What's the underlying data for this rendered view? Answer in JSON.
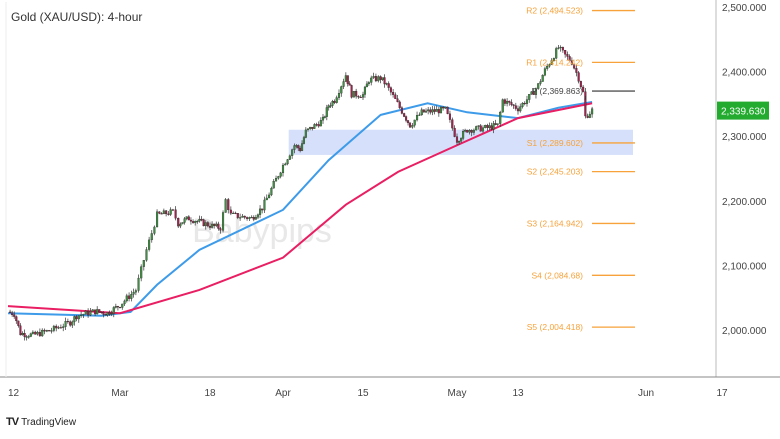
{
  "chart_data": {
    "type": "candlestick",
    "title": "Gold (XAU/USD): 4-hour",
    "watermark": "Babypips",
    "ylim": [
      1950,
      2520
    ],
    "y_ticks": [
      "2,500.000",
      "2,400.000",
      "2,300.000",
      "2,200.000",
      "2,100.000",
      "2,000.000"
    ],
    "y_tick_values": [
      2500,
      2400,
      2300,
      2200,
      2100,
      2000
    ],
    "x_ticks": [
      {
        "label": "12",
        "date": "2024-02-12"
      },
      {
        "label": "Mar",
        "date": "2024-03-01"
      },
      {
        "label": "18",
        "date": "2024-03-18"
      },
      {
        "label": "Apr",
        "date": "2024-04-01"
      },
      {
        "label": "15",
        "date": "2024-04-15"
      },
      {
        "label": "May",
        "date": "2024-05-01"
      },
      {
        "label": "13",
        "date": "2024-05-13"
      },
      {
        "label": "Jun",
        "date": "2024-06-01"
      },
      {
        "label": "17",
        "date": "2024-06-17"
      }
    ],
    "current_price": {
      "label": "2,339.630",
      "value": 2339.63,
      "color": "#22ab2f"
    },
    "price_path": [
      [
        "2024-02-12",
        2028
      ],
      [
        "2024-02-13",
        2025
      ],
      [
        "2024-02-14",
        1995
      ],
      [
        "2024-02-16",
        1992
      ],
      [
        "2024-02-19",
        2000
      ],
      [
        "2024-02-22",
        2012
      ],
      [
        "2024-02-23",
        2022
      ],
      [
        "2024-02-26",
        2029
      ],
      [
        "2024-02-28",
        2026
      ],
      [
        "2024-03-01",
        2039
      ],
      [
        "2024-03-04",
        2062
      ],
      [
        "2024-03-05",
        2093
      ],
      [
        "2024-03-06",
        2124
      ],
      [
        "2024-03-07",
        2150
      ],
      [
        "2024-03-08",
        2178
      ],
      [
        "2024-03-11",
        2183
      ],
      [
        "2024-03-12",
        2165
      ],
      [
        "2024-03-14",
        2173
      ],
      [
        "2024-03-18",
        2162
      ],
      [
        "2024-03-20",
        2158
      ],
      [
        "2024-03-21",
        2201
      ],
      [
        "2024-03-22",
        2178
      ],
      [
        "2024-03-26",
        2173
      ],
      [
        "2024-03-28",
        2189
      ],
      [
        "2024-04-01",
        2255
      ],
      [
        "2024-04-03",
        2286
      ],
      [
        "2024-04-04",
        2280
      ],
      [
        "2024-04-05",
        2307
      ],
      [
        "2024-04-08",
        2325
      ],
      [
        "2024-04-09",
        2348
      ],
      [
        "2024-04-10",
        2356
      ],
      [
        "2024-04-12",
        2395
      ],
      [
        "2024-04-13",
        2365
      ],
      [
        "2024-04-15",
        2364
      ],
      [
        "2024-04-16",
        2387
      ],
      [
        "2024-04-18",
        2390
      ],
      [
        "2024-04-19",
        2379
      ],
      [
        "2024-04-22",
        2333
      ],
      [
        "2024-04-23",
        2317
      ],
      [
        "2024-04-25",
        2337
      ],
      [
        "2024-04-29",
        2341
      ],
      [
        "2024-05-01",
        2294
      ],
      [
        "2024-05-03",
        2310
      ],
      [
        "2024-05-07",
        2313
      ],
      [
        "2024-05-09",
        2317
      ],
      [
        "2024-05-10",
        2356
      ],
      [
        "2024-05-13",
        2343
      ],
      [
        "2024-05-15",
        2364
      ],
      [
        "2024-05-16",
        2379
      ],
      [
        "2024-05-17",
        2402
      ],
      [
        "2024-05-19",
        2437
      ],
      [
        "2024-05-20",
        2425
      ],
      [
        "2024-05-21",
        2415
      ],
      [
        "2024-05-22",
        2390
      ],
      [
        "2024-05-23",
        2356
      ],
      [
        "2024-05-23",
        2330
      ],
      [
        "2024-05-24",
        2340
      ]
    ],
    "moving_averages": [
      {
        "color": "#3d9be9",
        "points": [
          [
            "2024-02-12",
            2026
          ],
          [
            "2024-02-27",
            2022
          ],
          [
            "2024-03-03",
            2028
          ],
          [
            "2024-03-08",
            2070
          ],
          [
            "2024-03-16",
            2124
          ],
          [
            "2024-04-01",
            2186
          ],
          [
            "2024-04-09",
            2263
          ],
          [
            "2024-04-18",
            2333
          ],
          [
            "2024-04-26",
            2351
          ],
          [
            "2024-05-03",
            2337
          ],
          [
            "2024-05-13",
            2328
          ],
          [
            "2024-05-19",
            2344
          ],
          [
            "2024-05-24",
            2353
          ]
        ]
      },
      {
        "color": "#e91e63",
        "points": [
          [
            "2024-02-12",
            2037
          ],
          [
            "2024-03-01",
            2026
          ],
          [
            "2024-03-16",
            2062
          ],
          [
            "2024-04-01",
            2112
          ],
          [
            "2024-04-12",
            2194
          ],
          [
            "2024-04-21",
            2245
          ],
          [
            "2024-05-01",
            2286
          ],
          [
            "2024-05-13",
            2328
          ],
          [
            "2024-05-24",
            2351
          ]
        ]
      }
    ],
    "support_zone": {
      "from": "2024-04-02",
      "low": 2271,
      "high": 2310,
      "color": "#d6e0fb"
    },
    "pivot_levels": [
      {
        "label": "R2 (2,494.523)",
        "value": 2494.523,
        "color": "#f7a23a"
      },
      {
        "label": "R1 (2,414.242)",
        "value": 2414.242,
        "color": "#f7a23a"
      },
      {
        "label": "P (2,369.863)",
        "value": 2369.863,
        "color": "#555555"
      },
      {
        "label": "S1 (2,289.602)",
        "value": 2289.602,
        "color": "#f7a23a"
      },
      {
        "label": "S2 (2,245.203)",
        "value": 2245.203,
        "color": "#f7a23a"
      },
      {
        "label": "S3 (2,164.942)",
        "value": 2164.942,
        "color": "#f7a23a"
      },
      {
        "label": "S4 (2,084.68)",
        "value": 2084.68,
        "color": "#f7a23a"
      },
      {
        "label": "S5 (2,004.418)",
        "value": 2004.418,
        "color": "#f7a23a"
      }
    ]
  },
  "footer": {
    "brand": "TradingView"
  }
}
